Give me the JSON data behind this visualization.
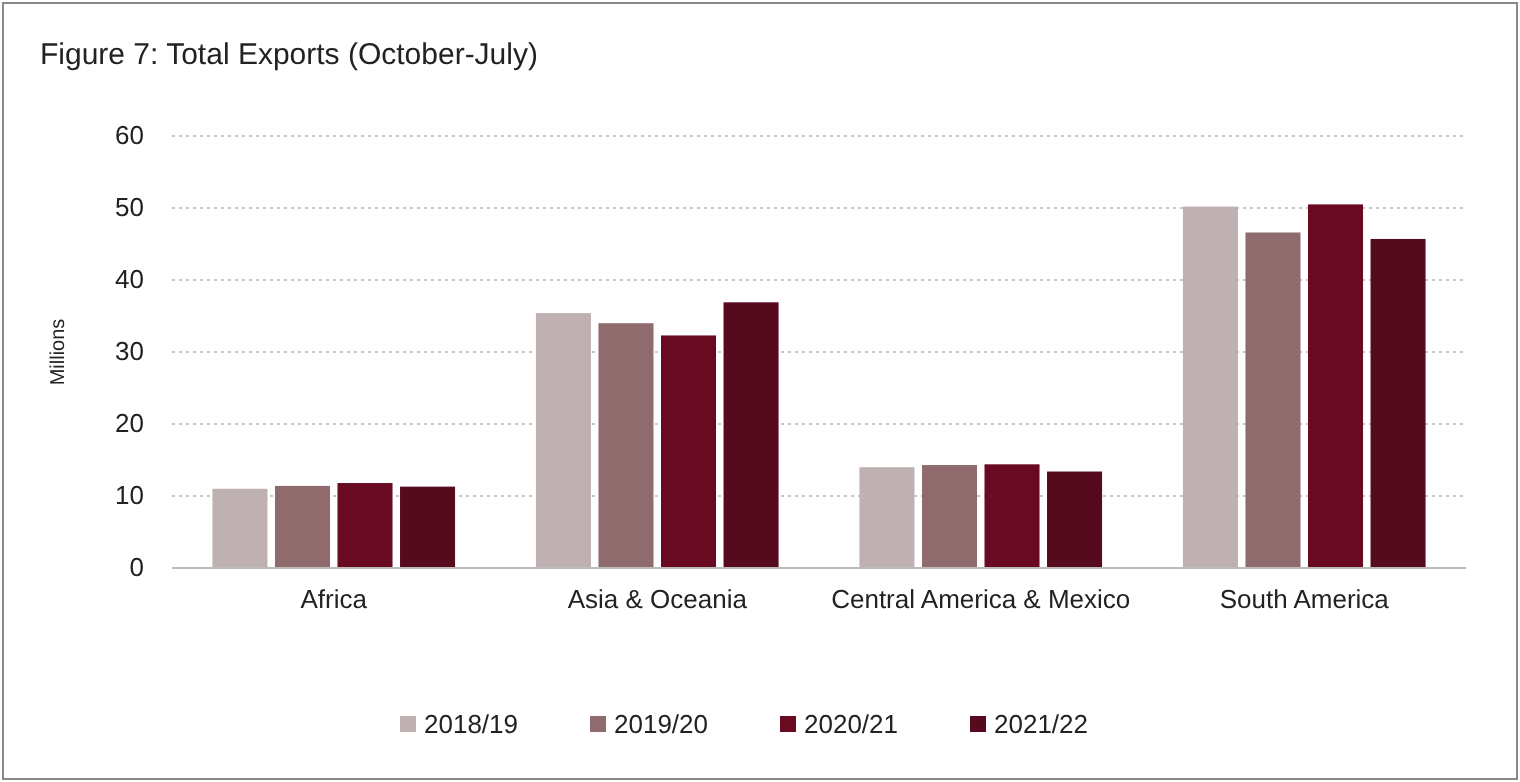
{
  "chart_data": {
    "type": "bar",
    "title": "Figure 7: Total Exports (October-July)",
    "ylabel": "Millions",
    "categories": [
      "Africa",
      "Asia & Oceania",
      "Central America & Mexico",
      "South America"
    ],
    "series": [
      {
        "name": "2018/19",
        "color": "#bfb1b1",
        "values": [
          11.0,
          35.4,
          14.0,
          50.2
        ]
      },
      {
        "name": "2019/20",
        "color": "#8f6b6e",
        "values": [
          11.4,
          34.0,
          14.3,
          46.6
        ]
      },
      {
        "name": "2020/21",
        "color": "#690a22",
        "values": [
          11.8,
          32.3,
          14.4,
          50.5
        ]
      },
      {
        "name": "2021/22",
        "color": "#560a1d",
        "values": [
          11.3,
          36.9,
          13.4,
          45.7
        ]
      }
    ],
    "ylim": [
      0,
      60
    ],
    "yticks": [
      0,
      10,
      20,
      30,
      40,
      50,
      60
    ],
    "grid": "y",
    "legend": "bottom"
  }
}
